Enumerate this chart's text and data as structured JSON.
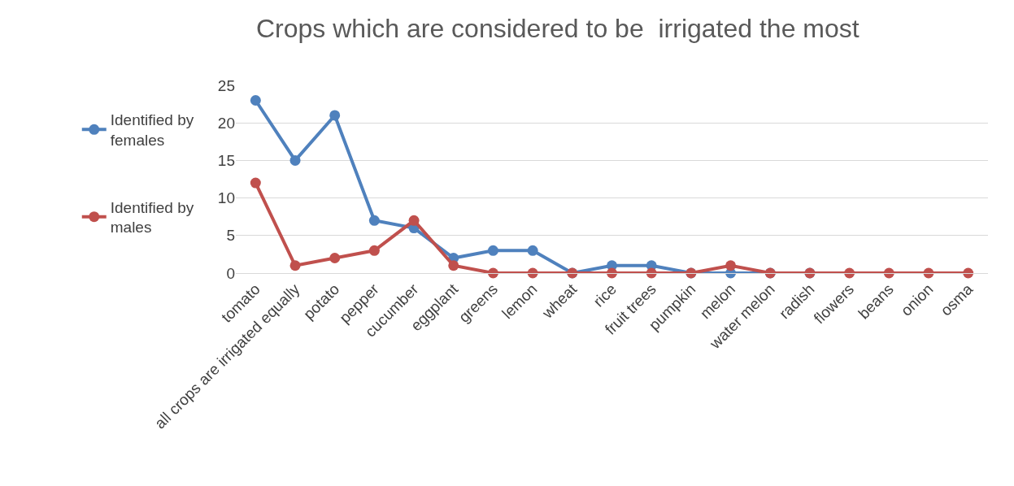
{
  "chart_data": {
    "type": "line",
    "title": "Crops which are considered to be  irrigated the most",
    "categories": [
      "tomato",
      "all crops are irrigated equally",
      "potato",
      "pepper",
      "cucumber",
      "eggplant",
      "greens",
      "lemon",
      "wheat",
      "rice",
      "fruit trees",
      "pumpkin",
      "melon",
      "water melon",
      "radish",
      "flowers",
      "beans",
      "onion",
      "osma"
    ],
    "series": [
      {
        "name": "Identified by females",
        "color": "#4f81bd",
        "values": [
          23,
          15,
          21,
          7,
          6,
          2,
          3,
          3,
          0,
          1,
          1,
          0,
          0,
          0,
          0,
          null,
          null,
          null,
          null
        ]
      },
      {
        "name": "Identified by males",
        "color": "#c0504d",
        "values": [
          12,
          1,
          2,
          3,
          7,
          1,
          0,
          0,
          0,
          0,
          0,
          0,
          1,
          0,
          0,
          0,
          0,
          0,
          0
        ]
      }
    ],
    "ylim": [
      0,
      25
    ],
    "yticks": [
      0,
      5,
      10,
      15,
      20,
      25
    ],
    "grid": "y",
    "legend": "left",
    "marker": "circle",
    "line_style": "solid"
  }
}
